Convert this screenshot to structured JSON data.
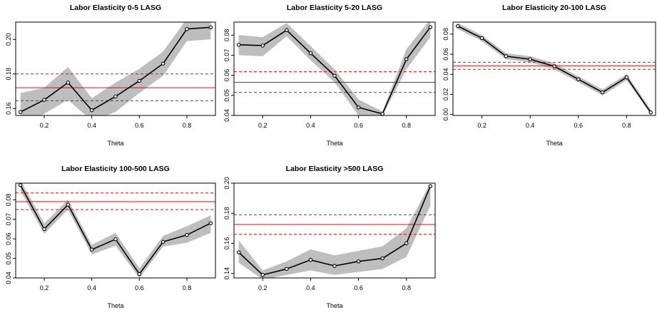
{
  "theme": {
    "band": "#bebebe",
    "line": "#000000",
    "ref": "#ff0000"
  },
  "chart_data": [
    {
      "type": "line",
      "title": "Labor Elasticity 0-5 LASG",
      "xlabel": "Theta",
      "ylabel": "",
      "x": [
        0.1,
        0.2,
        0.3,
        0.4,
        0.5,
        0.6,
        0.7,
        0.8,
        0.9
      ],
      "values": [
        0.158,
        0.165,
        0.175,
        0.159,
        0.167,
        0.176,
        0.186,
        0.206,
        0.207
      ],
      "band_lower": [
        0.15,
        0.157,
        0.165,
        0.153,
        0.158,
        0.169,
        0.179,
        0.199,
        0.2
      ],
      "band_upper": [
        0.169,
        0.172,
        0.184,
        0.166,
        0.175,
        0.183,
        0.193,
        0.212,
        0.213
      ],
      "hline": 0.172,
      "hline_lower": 0.1645,
      "hline_upper": 0.18,
      "xlim": [
        0.08,
        0.92
      ],
      "ylim": [
        0.156,
        0.21
      ],
      "xticks": [
        "0.2",
        "0.4",
        "0.6",
        "0.8"
      ],
      "yticks": [
        "0.16",
        "0.18",
        "0.20"
      ]
    },
    {
      "type": "line",
      "title": "Labor Elasticity 5-20 LASG",
      "xlabel": "Theta",
      "ylabel": "",
      "x": [
        0.1,
        0.2,
        0.3,
        0.4,
        0.5,
        0.6,
        0.7,
        0.8,
        0.9
      ],
      "values": [
        0.0752,
        0.0748,
        0.0825,
        0.071,
        0.0598,
        0.044,
        0.0408,
        0.068,
        0.084
      ],
      "band_lower": [
        0.07,
        0.0695,
        0.0795,
        0.0675,
        0.0565,
        0.04,
        0.04,
        0.063,
        0.079
      ],
      "band_upper": [
        0.08,
        0.079,
        0.086,
        0.0745,
        0.063,
        0.048,
        0.042,
        0.073,
        0.088
      ],
      "hline": 0.0565,
      "hline_lower": 0.0515,
      "hline_upper": 0.0618,
      "xlim": [
        0.08,
        0.92
      ],
      "ylim": [
        0.04,
        0.0865
      ],
      "xticks": [
        "0.2",
        "0.4",
        "0.6",
        "0.8"
      ],
      "yticks": [
        "0.04",
        "0.05",
        "0.06",
        "0.07",
        "0.08"
      ]
    },
    {
      "type": "line",
      "title": "Labor Elasticity 20-100 LASG",
      "xlabel": "Theta",
      "ylabel": "",
      "x": [
        0.1,
        0.2,
        0.3,
        0.4,
        0.5,
        0.6,
        0.7,
        0.8,
        0.9
      ],
      "values": [
        0.088,
        0.076,
        0.058,
        0.055,
        0.048,
        0.035,
        0.022,
        0.037,
        0.002
      ],
      "band_lower": [
        0.085,
        0.073,
        0.055,
        0.052,
        0.045,
        0.032,
        0.019,
        0.034,
        0.0
      ],
      "band_upper": [
        0.091,
        0.079,
        0.061,
        0.058,
        0.051,
        0.038,
        0.025,
        0.04,
        0.005
      ],
      "hline": 0.0485,
      "hline_lower": 0.045,
      "hline_upper": 0.052,
      "xlim": [
        0.08,
        0.92
      ],
      "ylim": [
        -0.001,
        0.092
      ],
      "xticks": [
        "0.2",
        "0.4",
        "0.6",
        "0.8"
      ],
      "yticks": [
        "0.00",
        "0.02",
        "0.04",
        "0.06",
        "0.08"
      ]
    },
    {
      "type": "line",
      "title": "Labor Elasticity 100-500 LASG",
      "xlabel": "Theta",
      "ylabel": "",
      "x": [
        0.1,
        0.2,
        0.3,
        0.4,
        0.5,
        0.6,
        0.7,
        0.8,
        0.9
      ],
      "values": [
        0.0875,
        0.065,
        0.0775,
        0.0545,
        0.0598,
        0.042,
        0.0585,
        0.062,
        0.068
      ],
      "band_lower": [
        0.0845,
        0.0625,
        0.075,
        0.052,
        0.0565,
        0.04,
        0.056,
        0.058,
        0.063
      ],
      "band_upper": [
        0.09,
        0.068,
        0.08,
        0.057,
        0.063,
        0.045,
        0.0615,
        0.0665,
        0.072
      ],
      "hline": 0.079,
      "hline_lower": 0.075,
      "hline_upper": 0.0835,
      "xlim": [
        0.08,
        0.92
      ],
      "ylim": [
        0.04,
        0.0885
      ],
      "xticks": [
        "0.2",
        "0.4",
        "0.6",
        "0.8"
      ],
      "yticks": [
        "0.04",
        "0.05",
        "0.06",
        "0.07",
        "0.08"
      ]
    },
    {
      "type": "line",
      "title": "Labor Elasticity >500 LASG",
      "xlabel": "Theta",
      "ylabel": "",
      "x": [
        0.1,
        0.2,
        0.3,
        0.4,
        0.5,
        0.6,
        0.7,
        0.8,
        0.9
      ],
      "values": [
        0.154,
        0.139,
        0.143,
        0.149,
        0.145,
        0.148,
        0.15,
        0.16,
        0.198
      ],
      "band_lower": [
        0.147,
        0.136,
        0.139,
        0.142,
        0.139,
        0.141,
        0.143,
        0.151,
        0.185
      ],
      "band_upper": [
        0.162,
        0.142,
        0.148,
        0.156,
        0.152,
        0.155,
        0.158,
        0.17,
        0.2
      ],
      "hline": 0.1725,
      "hline_lower": 0.166,
      "hline_upper": 0.179,
      "xlim": [
        0.08,
        0.92
      ],
      "ylim": [
        0.137,
        0.2
      ],
      "xticks": [
        "0.2",
        "0.4",
        "0.6",
        "0.8"
      ],
      "yticks": [
        "0.14",
        "0.16",
        "0.18",
        "0.20"
      ]
    }
  ]
}
